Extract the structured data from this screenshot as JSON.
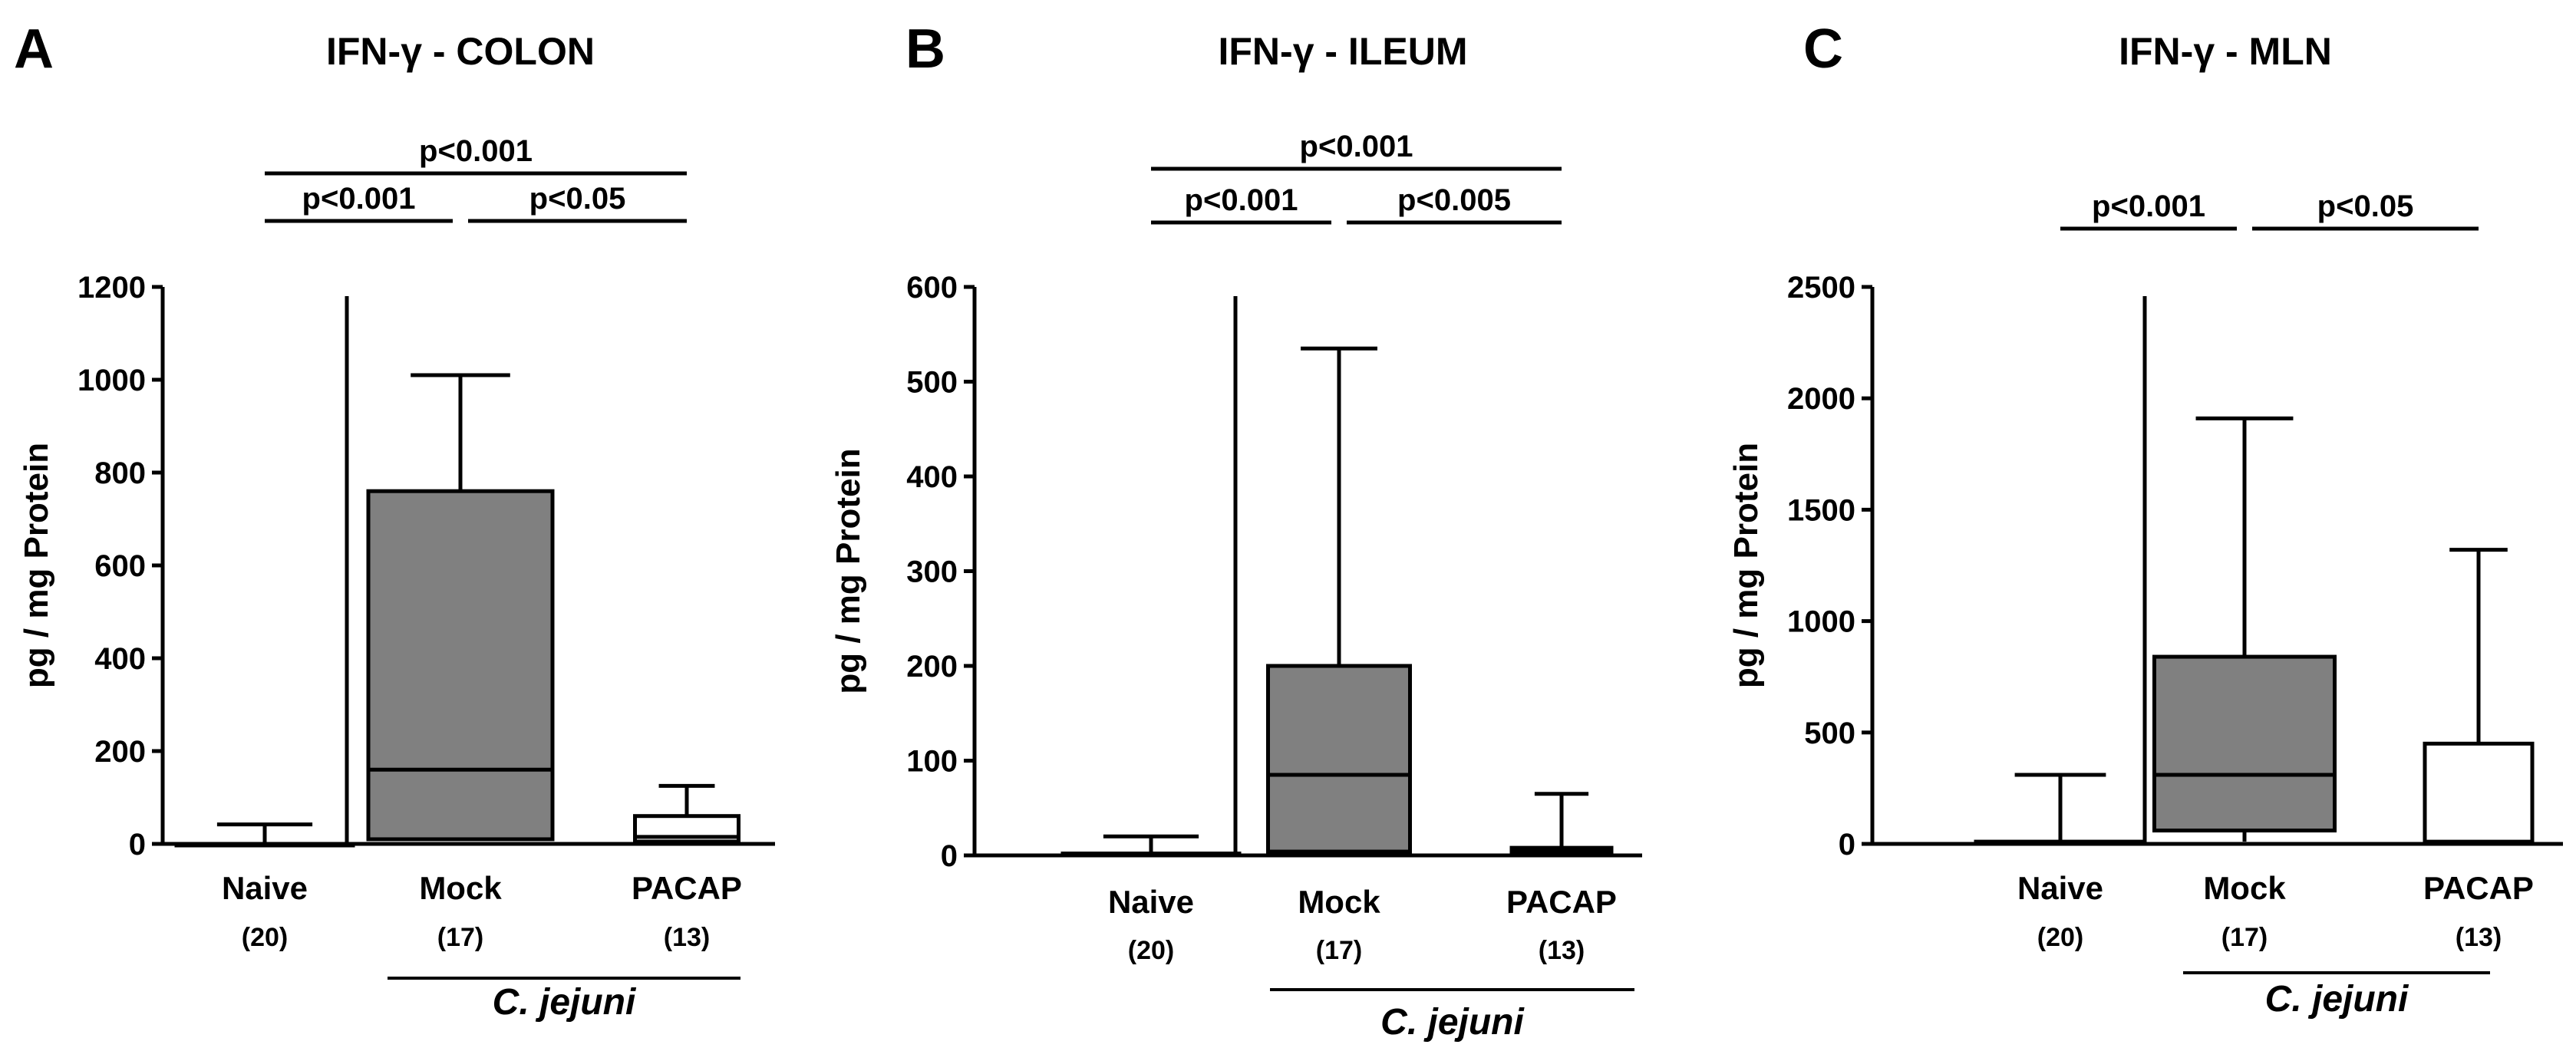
{
  "colors": {
    "box_infected_mock": "#808080",
    "box_pacap": "#ffffff",
    "ink": "#000000"
  },
  "chart_data": [
    {
      "type": "box",
      "panel": "A",
      "title": "IFN-γ - COLON",
      "ylabel": "pg / mg Protein",
      "ylim": [
        0,
        1200
      ],
      "yticks": [
        0,
        200,
        400,
        600,
        800,
        1000,
        1200
      ],
      "categories": [
        "Naive",
        "Mock",
        "PACAP"
      ],
      "n_labels": [
        "(20)",
        "(17)",
        "(13)"
      ],
      "group_label": "C. jejuni",
      "boxes": [
        {
          "name": "Naive",
          "min": 0,
          "q1": 0,
          "median": 0,
          "q3": 0,
          "max": 42,
          "fill": "#ffffff"
        },
        {
          "name": "Mock",
          "min": 10,
          "q1": 10,
          "median": 160,
          "q3": 760,
          "max": 1010,
          "fill": "#808080"
        },
        {
          "name": "PACAP",
          "min": 0,
          "q1": 5,
          "median": 15,
          "q3": 60,
          "max": 125,
          "fill": "#ffffff"
        }
      ],
      "significance": [
        {
          "from": "Naive",
          "to": "PACAP",
          "label": "p<0.001",
          "level": 2
        },
        {
          "from": "Naive",
          "to": "Mock",
          "label": "p<0.001",
          "level": 1
        },
        {
          "from": "Mock",
          "to": "PACAP",
          "label": "p<0.05",
          "level": 1
        }
      ]
    },
    {
      "type": "box",
      "panel": "B",
      "title": "IFN-γ - ILEUM",
      "ylabel": "pg / mg Protein",
      "ylim": [
        0,
        600
      ],
      "yticks": [
        0,
        100,
        200,
        300,
        400,
        500,
        600
      ],
      "categories": [
        "Naive",
        "Mock",
        "PACAP"
      ],
      "n_labels": [
        "(20)",
        "(17)",
        "(13)"
      ],
      "group_label": "C. jejuni",
      "boxes": [
        {
          "name": "Naive",
          "min": 0,
          "q1": 0,
          "median": 1,
          "q3": 2,
          "max": 20,
          "fill": "#ffffff"
        },
        {
          "name": "Mock",
          "min": 2,
          "q1": 4,
          "median": 85,
          "q3": 200,
          "max": 535,
          "fill": "#808080"
        },
        {
          "name": "PACAP",
          "min": 0,
          "q1": 2,
          "median": 4,
          "q3": 8,
          "max": 65,
          "fill": "#ffffff"
        }
      ],
      "significance": [
        {
          "from": "Naive",
          "to": "PACAP",
          "label": "p<0.001",
          "level": 2
        },
        {
          "from": "Naive",
          "to": "Mock",
          "label": "p<0.001",
          "level": 1
        },
        {
          "from": "Mock",
          "to": "PACAP",
          "label": "p<0.005",
          "level": 1
        }
      ]
    },
    {
      "type": "box",
      "panel": "C",
      "title": "IFN-γ - MLN",
      "ylabel": "pg / mg Protein",
      "ylim": [
        0,
        2500
      ],
      "yticks": [
        0,
        500,
        1000,
        1500,
        2000,
        2500
      ],
      "categories": [
        "Naive",
        "Mock",
        "PACAP"
      ],
      "n_labels": [
        "(20)",
        "(17)",
        "(13)"
      ],
      "group_label": "C. jejuni",
      "boxes": [
        {
          "name": "Naive",
          "min": 0,
          "q1": 0,
          "median": 5,
          "q3": 10,
          "max": 310,
          "fill": "#ffffff"
        },
        {
          "name": "Mock",
          "min": 10,
          "q1": 60,
          "median": 310,
          "q3": 840,
          "max": 1910,
          "fill": "#808080"
        },
        {
          "name": "PACAP",
          "min": 0,
          "q1": 5,
          "median": 10,
          "q3": 450,
          "max": 1320,
          "fill": "#ffffff"
        }
      ],
      "significance": [
        {
          "from": "Naive",
          "to": "Mock",
          "label": "p<0.001",
          "level": 1
        },
        {
          "from": "Mock",
          "to": "PACAP",
          "label": "p<0.05",
          "level": 1
        }
      ]
    }
  ]
}
